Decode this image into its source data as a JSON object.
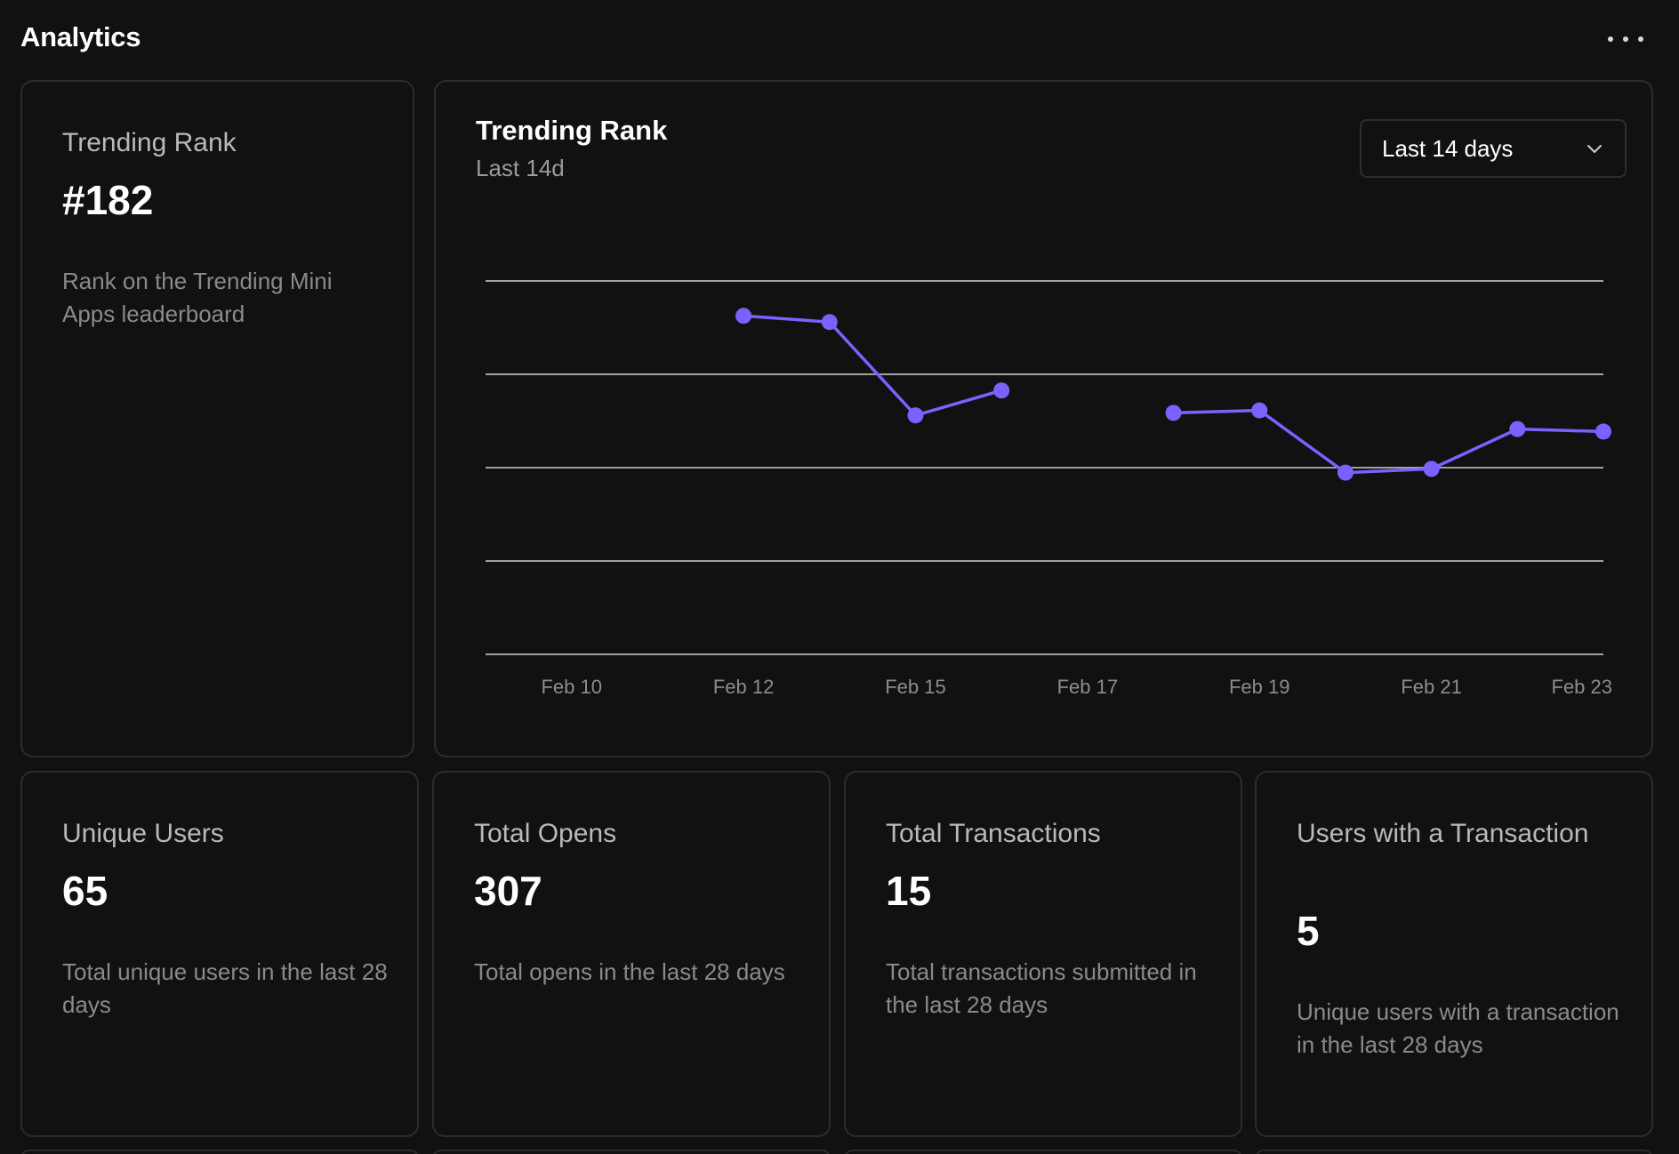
{
  "header": {
    "title": "Analytics",
    "more_icon": "more-horizontal-icon"
  },
  "rank_card": {
    "label": "Trending Rank",
    "value": "#182",
    "description": "Rank on the Trending Mini Apps leaderboard"
  },
  "chart_card": {
    "title": "Trending Rank",
    "subtitle": "Last 14d",
    "range_select": {
      "selected": "Last 14 days",
      "icon": "chevron-down-icon"
    }
  },
  "chart_data": {
    "type": "line",
    "title": "Trending Rank",
    "subtitle": "Last 14d",
    "xlabel": "",
    "ylabel": "",
    "x_tick_labels": [
      "Feb 10",
      "Feb 12",
      "Feb 15",
      "Feb 17",
      "Feb 19",
      "Feb 21",
      "Feb 23"
    ],
    "grid": true,
    "y_gridlines": 5,
    "color": "#7b61ff",
    "series": [
      {
        "points": [
          {
            "x": 3,
            "y": 28
          },
          {
            "x": 4,
            "y": 33
          },
          {
            "x": 5,
            "y": 108
          },
          {
            "x": 6,
            "y": 88
          },
          {
            "x": 8,
            "y": 106
          },
          {
            "x": 9,
            "y": 104
          },
          {
            "x": 10,
            "y": 154
          },
          {
            "x": 11,
            "y": 151
          },
          {
            "x": 12,
            "y": 119
          },
          {
            "x": 13,
            "y": 121
          }
        ]
      }
    ]
  },
  "stats": [
    {
      "label": "Unique Users",
      "value": "65",
      "description": "Total unique users in the last 28 days"
    },
    {
      "label": "Total Opens",
      "value": "307",
      "description": "Total opens in the last 28 days"
    },
    {
      "label": "Total Transactions",
      "value": "15",
      "description": "Total transactions submitted in the last 28 days"
    },
    {
      "label": "Users with a Transaction",
      "value": "5",
      "description": "Unique users with a transaction in the last 28 days"
    }
  ]
}
